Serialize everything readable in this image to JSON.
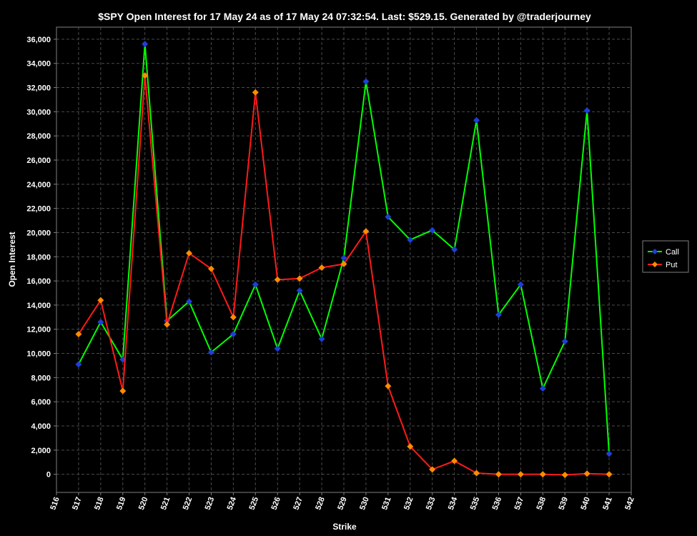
{
  "chart_data": {
    "type": "line",
    "title": "$SPY Open Interest for 17 May 24 as of 17 May 24 07:32:54.  Last: $529.15.  Generated by @traderjourney",
    "xlabel": "Strike",
    "ylabel": "Open Interest",
    "xlim": [
      516,
      542
    ],
    "ylim": [
      -1500,
      37000
    ],
    "x_ticks": [
      516,
      517,
      518,
      519,
      520,
      521,
      522,
      523,
      524,
      525,
      526,
      527,
      528,
      529,
      530,
      531,
      532,
      533,
      534,
      535,
      536,
      537,
      538,
      539,
      540,
      541,
      542
    ],
    "y_ticks": [
      0,
      2000,
      4000,
      6000,
      8000,
      10000,
      12000,
      14000,
      16000,
      18000,
      20000,
      22000,
      24000,
      26000,
      28000,
      30000,
      32000,
      34000,
      36000
    ],
    "x_tick_labels": [
      "516",
      "517",
      "518",
      "519",
      "520",
      "521",
      "522",
      "523",
      "524",
      "525",
      "526",
      "527",
      "528",
      "529",
      "530",
      "531",
      "532",
      "533",
      "534",
      "535",
      "536",
      "537",
      "538",
      "539",
      "540",
      "541",
      "542"
    ],
    "y_tick_labels": [
      "0",
      "2,000",
      "4,000",
      "6,000",
      "8,000",
      "10,000",
      "12,000",
      "14,000",
      "16,000",
      "18,000",
      "20,000",
      "22,000",
      "24,000",
      "26,000",
      "28,000",
      "30,000",
      "32,000",
      "34,000",
      "36,000"
    ],
    "grid": true,
    "legend_position": "right",
    "x": [
      517,
      518,
      519,
      520,
      521,
      522,
      523,
      524,
      525,
      526,
      527,
      528,
      529,
      530,
      531,
      532,
      533,
      534,
      535,
      536,
      537,
      538,
      539,
      540,
      541
    ],
    "series": [
      {
        "name": "Call",
        "line_color": "#00ff00",
        "marker_color": "#1f3fd6",
        "values": [
          9100,
          12600,
          9500,
          35600,
          12700,
          14300,
          10100,
          11600,
          15700,
          10400,
          15200,
          11200,
          17900,
          32500,
          21300,
          19400,
          20200,
          18600,
          29300,
          13200,
          15700,
          7100,
          11000,
          30100,
          1700
        ]
      },
      {
        "name": "Put",
        "line_color": "#ff1a1a",
        "marker_color": "#ff8c00",
        "values": [
          11600,
          14400,
          6900,
          33000,
          12400,
          18300,
          17000,
          13000,
          31600,
          16100,
          16200,
          17100,
          17400,
          20100,
          7300,
          2300,
          400,
          1100,
          100,
          0,
          0,
          0,
          -50,
          50,
          0
        ]
      }
    ]
  }
}
